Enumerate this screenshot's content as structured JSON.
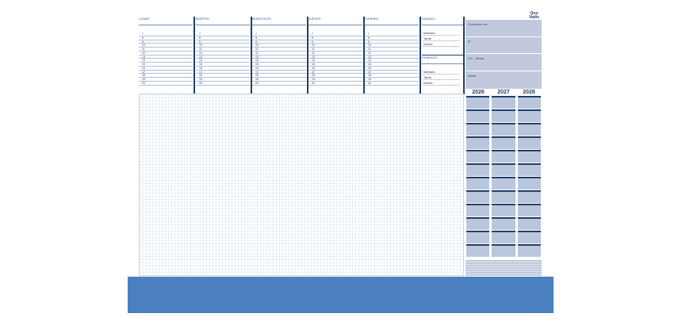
{
  "days": [
    "LUNES",
    "MARTES",
    "MIERCOLES",
    "JUEVES",
    "VIERNES"
  ],
  "weekend": [
    "SABADO",
    "DOMINGO"
  ],
  "hours": [
    "7",
    "8",
    "9",
    "10",
    "11",
    "12",
    "13",
    "14",
    "15",
    "16",
    "17",
    "18",
    "19",
    "20"
  ],
  "slots": [
    "Mañana",
    "Tarde",
    "Noche"
  ],
  "panel": [
    "Contactar con",
    "✆",
    "Ver - llamar",
    "Notas"
  ],
  "logo": "Quo Vadis",
  "years": [
    "2026",
    "2027",
    "2028"
  ],
  "colors": {
    "accent": "#1f3f6a",
    "panel": "#c2c9dc",
    "bar": "#4a80c0"
  }
}
